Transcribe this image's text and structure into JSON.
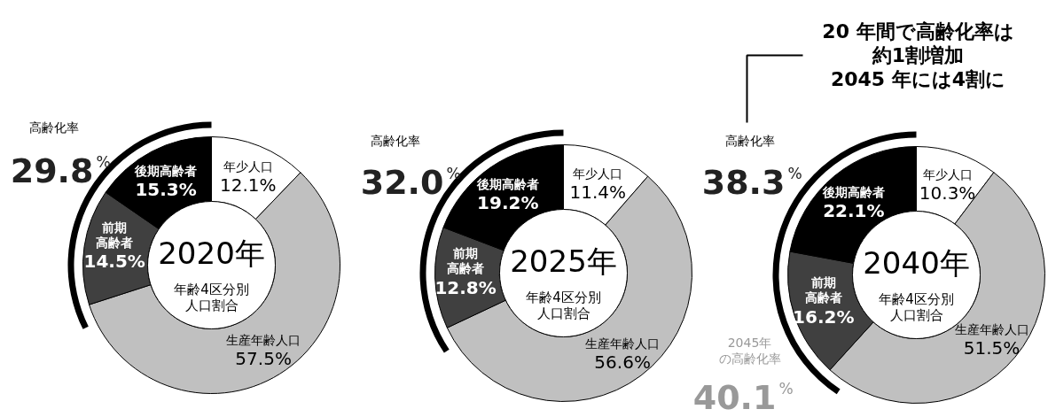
{
  "chart_data": [
    {
      "type": "donut",
      "title": "2020年",
      "subtitle": "年齢4区分別人口割合",
      "categories": [
        "年少人口",
        "生産年齢人口",
        "前期高齢者",
        "後期高齢者"
      ],
      "values": [
        12.1,
        57.5,
        14.5,
        15.3
      ],
      "value_labels": [
        "12.1%",
        "57.5%",
        "14.5%",
        "15.3%"
      ],
      "colors": [
        "#ffffff",
        "#c0c0c0",
        "#404040",
        "#000000"
      ],
      "annotations": [
        "高齢化率",
        "29.8%"
      ]
    },
    {
      "type": "donut",
      "title": "2025年",
      "subtitle": "年齢4区分別人口割合",
      "categories": [
        "年少人口",
        "生産年齢人口",
        "前期高齢者",
        "後期高齢者"
      ],
      "values": [
        11.4,
        56.6,
        12.8,
        19.2
      ],
      "value_labels": [
        "11.4%",
        "56.6%",
        "12.8%",
        "19.2%"
      ],
      "colors": [
        "#ffffff",
        "#c0c0c0",
        "#404040",
        "#000000"
      ],
      "annotations": [
        "高齢化率",
        "32.0%"
      ]
    },
    {
      "type": "donut",
      "title": "2040年",
      "subtitle": "年齢4区分別人口割合",
      "categories": [
        "年少人口",
        "生産年齢人口",
        "前期高齢者",
        "後期高齢者"
      ],
      "values": [
        10.3,
        51.5,
        16.2,
        22.1
      ],
      "value_labels": [
        "10.3%",
        "51.5%",
        "16.2%",
        "22.1%"
      ],
      "colors": [
        "#ffffff",
        "#c0c0c0",
        "#404040",
        "#000000"
      ],
      "annotations": [
        "高齢化率",
        "38.3%",
        "2045年",
        "の高齢化率",
        "40.1%",
        "20 年間で高齢化率は",
        "約1割増加",
        "2045 年には4割に"
      ]
    }
  ]
}
